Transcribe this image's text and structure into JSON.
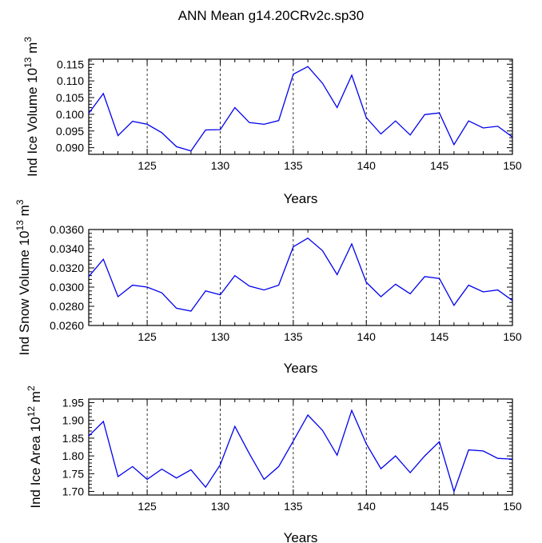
{
  "title": "ANN Mean g14.20CRv2c.sp30",
  "chart_data": [
    {
      "type": "line",
      "ylabel": "Ind Ice Volume 10",
      "ylabel_exp": "13",
      "ylabel_unit": "m",
      "ylabel_unit_exp": "3",
      "xlabel": "Years",
      "xlim": [
        121,
        150
      ],
      "ylim": [
        0.088,
        0.1165
      ],
      "xticks": [
        125,
        130,
        135,
        140,
        145,
        150
      ],
      "xtick_labels": [
        "125",
        "130",
        "135",
        "140",
        "145",
        "150"
      ],
      "yticks": [
        0.09,
        0.095,
        0.1,
        0.105,
        0.11,
        0.115
      ],
      "ytick_labels": [
        "0.090",
        "0.095",
        "0.100",
        "0.105",
        "0.110",
        "0.115"
      ],
      "grid_x": [
        125,
        130,
        135,
        140,
        145
      ],
      "color": "#0000ee",
      "x": [
        121,
        122,
        123,
        124,
        125,
        126,
        127,
        128,
        129,
        130,
        131,
        132,
        133,
        134,
        135,
        136,
        137,
        138,
        139,
        140,
        141,
        142,
        143,
        144,
        145,
        146,
        147,
        148,
        149,
        150
      ],
      "values": [
        0.1003,
        0.1062,
        0.0936,
        0.0979,
        0.097,
        0.0945,
        0.0903,
        0.089,
        0.0953,
        0.0954,
        0.102,
        0.0975,
        0.097,
        0.0981,
        0.112,
        0.1143,
        0.1093,
        0.102,
        0.1117,
        0.099,
        0.0941,
        0.098,
        0.0938,
        0.0999,
        0.1004,
        0.0909,
        0.098,
        0.0959,
        0.0964,
        0.0932
      ]
    },
    {
      "type": "line",
      "ylabel": "Ind Snow Volume 10",
      "ylabel_exp": "13",
      "ylabel_unit": "m",
      "ylabel_unit_exp": "3",
      "xlabel": "Years",
      "xlim": [
        121,
        150
      ],
      "ylim": [
        0.026,
        0.036
      ],
      "xticks": [
        125,
        130,
        135,
        140,
        145,
        150
      ],
      "xtick_labels": [
        "125",
        "130",
        "135",
        "140",
        "145",
        "150"
      ],
      "yticks": [
        0.026,
        0.028,
        0.03,
        0.032,
        0.034,
        0.036
      ],
      "ytick_labels": [
        "0.0260",
        "0.0280",
        "0.0300",
        "0.0320",
        "0.0340",
        "0.0360"
      ],
      "grid_x": [
        125,
        130,
        135,
        140,
        145
      ],
      "color": "#0000ee",
      "x": [
        121,
        122,
        123,
        124,
        125,
        126,
        127,
        128,
        129,
        130,
        131,
        132,
        133,
        134,
        135,
        136,
        137,
        138,
        139,
        140,
        141,
        142,
        143,
        144,
        145,
        146,
        147,
        148,
        149,
        150
      ],
      "values": [
        0.0311,
        0.0329,
        0.029,
        0.0302,
        0.03,
        0.0294,
        0.0278,
        0.0275,
        0.0296,
        0.0292,
        0.0312,
        0.0301,
        0.0297,
        0.0302,
        0.0342,
        0.0351,
        0.0338,
        0.0313,
        0.0345,
        0.0305,
        0.029,
        0.0303,
        0.0293,
        0.0311,
        0.0309,
        0.0281,
        0.0302,
        0.0295,
        0.0297,
        0.0286
      ]
    },
    {
      "type": "line",
      "ylabel": "Ind Ice Area 10",
      "ylabel_exp": "12",
      "ylabel_unit": "m",
      "ylabel_unit_exp": "2",
      "xlabel": "Years",
      "xlim": [
        121,
        150
      ],
      "ylim": [
        1.69,
        1.96
      ],
      "xticks": [
        125,
        130,
        135,
        140,
        145,
        150
      ],
      "xtick_labels": [
        "125",
        "130",
        "135",
        "140",
        "145",
        "150"
      ],
      "yticks": [
        1.7,
        1.75,
        1.8,
        1.85,
        1.9,
        1.95
      ],
      "ytick_labels": [
        "1.70",
        "1.75",
        "1.80",
        "1.85",
        "1.90",
        "1.95"
      ],
      "grid_x": [
        125,
        130,
        135,
        140,
        145
      ],
      "color": "#0000ee",
      "x": [
        121,
        122,
        123,
        124,
        125,
        126,
        127,
        128,
        129,
        130,
        131,
        132,
        133,
        134,
        135,
        136,
        137,
        138,
        139,
        140,
        141,
        142,
        143,
        144,
        145,
        146,
        147,
        148,
        149,
        150
      ],
      "values": [
        1.856,
        1.897,
        1.742,
        1.77,
        1.734,
        1.763,
        1.738,
        1.761,
        1.712,
        1.775,
        1.883,
        1.806,
        1.734,
        1.77,
        1.842,
        1.915,
        1.872,
        1.802,
        1.928,
        1.834,
        1.764,
        1.8,
        1.753,
        1.8,
        1.84,
        1.7,
        1.817,
        1.814,
        1.793,
        1.791
      ]
    }
  ]
}
